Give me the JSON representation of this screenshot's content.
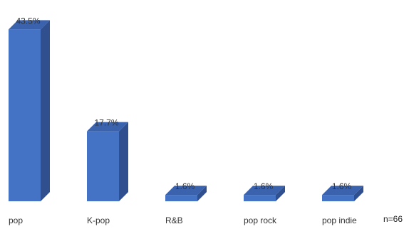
{
  "chart_data": {
    "type": "bar",
    "style": "3d-column",
    "categories": [
      "pop",
      "K-pop",
      "R&B",
      "pop rock",
      "pop indie"
    ],
    "values": [
      43.5,
      17.7,
      1.6,
      1.6,
      1.6
    ],
    "value_labels": [
      "43.5%",
      "17.7%",
      "1.6%",
      "1.6%",
      "1.6%"
    ],
    "unit": "%",
    "title": "",
    "xlabel": "",
    "ylabel": "",
    "ylim": [
      0,
      45
    ],
    "grid": false,
    "legend": "none",
    "colors": {
      "front": "#4472c4",
      "side": "#2f4f8f",
      "top": "#3a62ad",
      "text": "#333333"
    }
  },
  "note": "n=66"
}
